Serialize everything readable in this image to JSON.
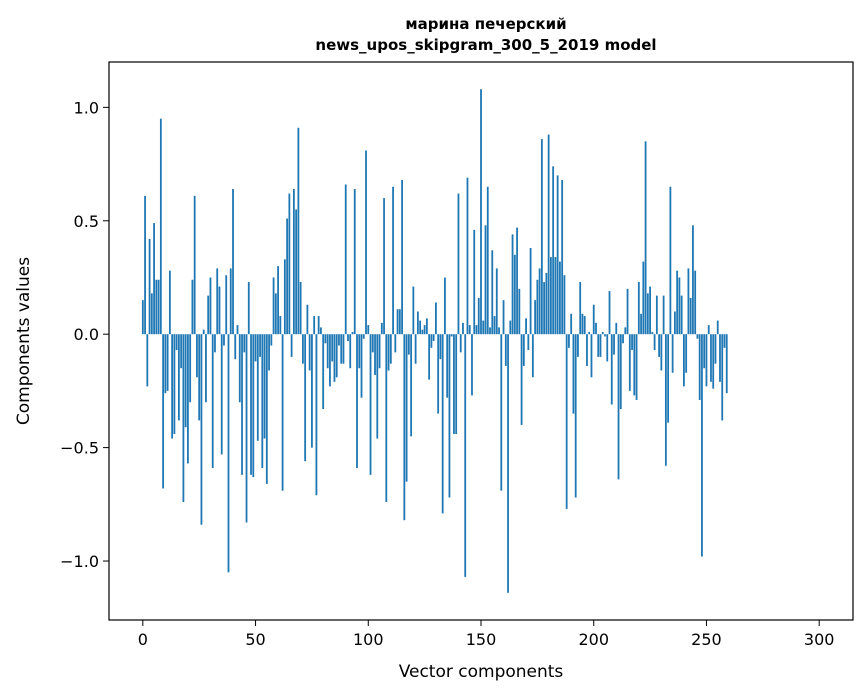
{
  "chart_data": {
    "type": "bar",
    "title_line1": "марина печерский",
    "title_line2": "news_upos_skipgram_300_5_2019 model",
    "xlabel": "Vector components",
    "ylabel": "Components values",
    "xlim": [
      -15,
      315
    ],
    "ylim": [
      -1.26,
      1.2
    ],
    "xticks": [
      0,
      50,
      100,
      150,
      200,
      250,
      300
    ],
    "xtick_labels": [
      "0",
      "50",
      "100",
      "150",
      "200",
      "250",
      "300"
    ],
    "yticks": [
      -1.0,
      -0.5,
      0.0,
      0.5,
      1.0
    ],
    "ytick_labels": [
      "−1.0",
      "−0.5",
      "0.0",
      "0.5",
      "1.0"
    ],
    "bar_color": "#1f77b4",
    "grid": false,
    "legend": false,
    "values": [
      0.15,
      0.61,
      -0.23,
      0.42,
      0.18,
      0.49,
      0.24,
      0.24,
      0.95,
      -0.68,
      -0.26,
      -0.25,
      0.28,
      -0.46,
      -0.44,
      -0.07,
      -0.38,
      -0.15,
      -0.74,
      -0.41,
      -0.57,
      -0.3,
      0.24,
      0.61,
      -0.19,
      -0.38,
      -0.84,
      0.02,
      -0.3,
      0.17,
      0.25,
      -0.59,
      -0.08,
      0.29,
      0.21,
      -0.53,
      -0.05,
      0.26,
      -1.05,
      0.29,
      0.64,
      -0.11,
      0.04,
      -0.3,
      -0.62,
      -0.08,
      -0.83,
      0.23,
      -0.62,
      -0.63,
      -0.12,
      -0.47,
      -0.1,
      -0.59,
      -0.46,
      -0.66,
      -0.16,
      -0.05,
      0.25,
      0.18,
      0.3,
      0.08,
      -0.69,
      0.33,
      0.51,
      0.62,
      -0.1,
      0.64,
      0.55,
      0.91,
      0.23,
      -0.13,
      -0.56,
      0.13,
      -0.16,
      -0.5,
      0.08,
      -0.71,
      0.08,
      0.03,
      -0.33,
      -0.04,
      -0.15,
      -0.23,
      -0.12,
      -0.21,
      -0.19,
      -0.05,
      -0.13,
      -0.13,
      0.66,
      -0.03,
      -0.15,
      0.01,
      0.64,
      -0.59,
      -0.15,
      -0.28,
      -0.02,
      0.81,
      0.04,
      -0.62,
      -0.08,
      -0.18,
      -0.46,
      -0.15,
      0.05,
      0.6,
      -0.74,
      -0.16,
      -0.13,
      0.65,
      -0.08,
      0.11,
      0.11,
      0.68,
      -0.82,
      -0.65,
      -0.09,
      -0.45,
      0.21,
      -0.13,
      0.1,
      0.06,
      0.02,
      0.04,
      0.07,
      -0.2,
      -0.06,
      -0.03,
      0.14,
      -0.35,
      -0.11,
      -0.79,
      0.25,
      -0.28,
      -0.72,
      -0.01,
      -0.44,
      -0.44,
      0.62,
      -0.08,
      0.05,
      -1.07,
      0.69,
      0.04,
      -0.27,
      0.46,
      0.04,
      0.16,
      1.08,
      0.06,
      0.48,
      0.65,
      0.03,
      0.37,
      0.08,
      0.29,
      0.03,
      -0.69,
      0.15,
      -0.14,
      -1.14,
      0.06,
      0.44,
      0.35,
      0.47,
      0.2,
      -0.4,
      -0.14,
      0.07,
      -0.07,
      0.38,
      -0.19,
      0.15,
      0.24,
      0.29,
      0.86,
      0.23,
      0.27,
      0.88,
      0.34,
      0.74,
      0.34,
      0.7,
      0.32,
      0.68,
      0.26,
      -0.77,
      -0.06,
      0.09,
      -0.35,
      -0.72,
      -0.1,
      0.23,
      0.09,
      0.08,
      -0.14,
      0.01,
      -0.19,
      0.13,
      0.05,
      -0.1,
      -0.1,
      0.01,
      -0.01,
      -0.12,
      0.19,
      -0.31,
      -0.09,
      0.05,
      -0.64,
      -0.33,
      -0.04,
      0.03,
      0.2,
      -0.25,
      -0.07,
      -0.27,
      -0.29,
      0.23,
      0.09,
      0.32,
      0.85,
      0.18,
      0.21,
      0.01,
      -0.07,
      0.17,
      -0.1,
      -0.16,
      0.17,
      -0.58,
      -0.39,
      0.65,
      -0.17,
      0.1,
      0.28,
      0.25,
      0.17,
      -0.23,
      -0.17,
      0.29,
      0.16,
      0.48,
      0.28,
      -0.02,
      -0.29,
      -0.98,
      -0.15,
      -0.23,
      0.04,
      -0.21,
      -0.24,
      -0.13,
      0.06,
      -0.21,
      -0.38,
      -0.06,
      -0.26
    ]
  }
}
